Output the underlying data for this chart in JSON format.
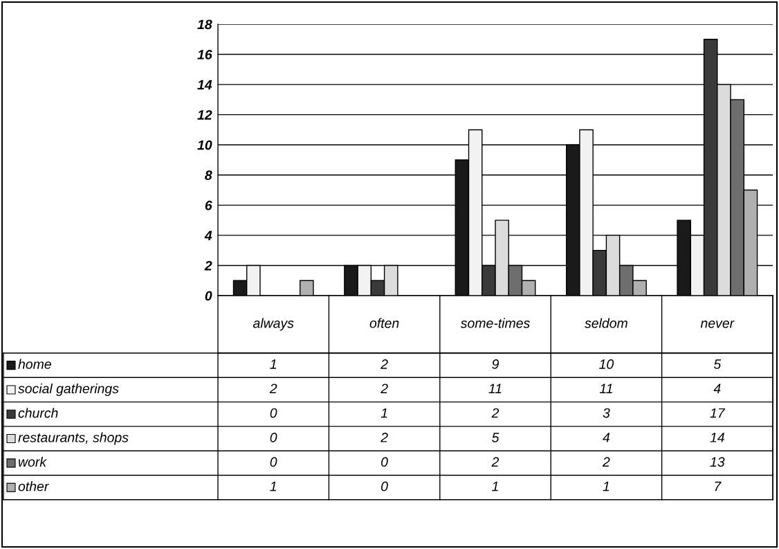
{
  "chart_data": {
    "type": "bar",
    "categories": [
      "always",
      "often",
      "some-times",
      "seldom",
      "never"
    ],
    "series": [
      {
        "name": "home",
        "color": "#1a1a1a",
        "values": [
          1,
          2,
          9,
          10,
          5
        ]
      },
      {
        "name": "social gatherings",
        "color": "#f2f2f2",
        "values": [
          2,
          2,
          11,
          11,
          4
        ]
      },
      {
        "name": "church",
        "color": "#3a3a3a",
        "values": [
          0,
          1,
          2,
          3,
          17
        ]
      },
      {
        "name": "restaurants, shops",
        "color": "#dcdcdc",
        "values": [
          0,
          2,
          5,
          4,
          14
        ]
      },
      {
        "name": "work",
        "color": "#6e6e6e",
        "values": [
          0,
          0,
          2,
          2,
          13
        ]
      },
      {
        "name": "other",
        "color": "#b0b0b0",
        "values": [
          1,
          0,
          1,
          1,
          7
        ]
      }
    ],
    "ylim": [
      0,
      18
    ],
    "yticks": [
      0,
      2,
      4,
      6,
      8,
      10,
      12,
      14,
      16,
      18
    ],
    "grid": "y",
    "legend": "bottom",
    "data_labels": true
  }
}
